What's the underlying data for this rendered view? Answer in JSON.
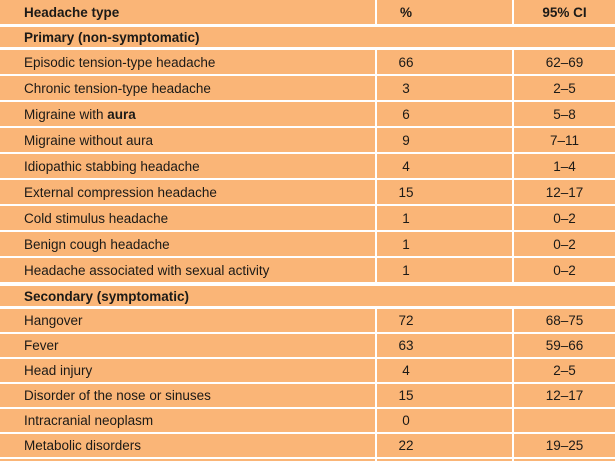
{
  "table": {
    "columns": [
      {
        "label": "Headache type"
      },
      {
        "label": "%"
      },
      {
        "label": "95% CI"
      }
    ],
    "sections": [
      {
        "title": "Primary (non-symptomatic)",
        "rows": [
          {
            "label": "Episodic tension-type headache",
            "pct": "66",
            "ci": "62–69"
          },
          {
            "label": "Chronic tension-type headache",
            "pct": "3",
            "ci": "2–5"
          },
          {
            "label_prefix": "Migraine with ",
            "label_bold": "aura",
            "pct": "6",
            "ci": "5–8"
          },
          {
            "label": "Migraine without aura",
            "pct": "9",
            "ci": "7–11"
          },
          {
            "label": "Idiopathic stabbing headache",
            "pct": "4",
            "ci": "1–4"
          },
          {
            "label": "External compression headache",
            "pct": "15",
            "ci": "12–17"
          },
          {
            "label": "Cold stimulus headache",
            "pct": "1",
            "ci": "0–2"
          },
          {
            "label": "Benign cough headache",
            "pct": "1",
            "ci": "0–2"
          },
          {
            "label": "Headache associated with sexual activity",
            "pct": "1",
            "ci": "0–2"
          }
        ]
      },
      {
        "title": "Secondary (symptomatic)",
        "rows": [
          {
            "label": "Hangover",
            "pct": "72",
            "ci": "68–75"
          },
          {
            "label": "Fever",
            "pct": "63",
            "ci": "59–66"
          },
          {
            "label": "Head injury",
            "pct": "4",
            "ci": "2–5"
          },
          {
            "label": "Disorder of the nose or sinuses",
            "pct": "15",
            "ci": "12–17"
          },
          {
            "label": "Intracranial neoplasm",
            "pct": "0",
            "ci": ""
          },
          {
            "label": "Metabolic disorders",
            "pct": "22",
            "ci": "19–25"
          }
        ]
      }
    ],
    "colors": {
      "row_bg": "#FAB577",
      "divider": "#FFFFFF",
      "text": "#1C1A17"
    }
  }
}
